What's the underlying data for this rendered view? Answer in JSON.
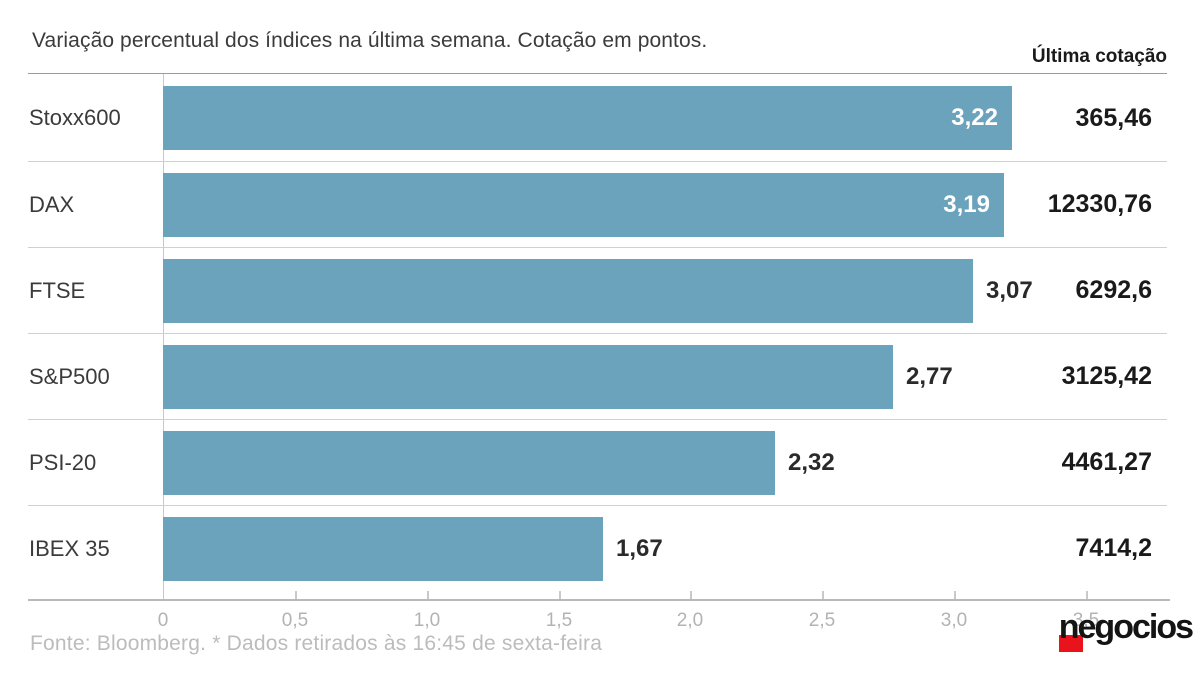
{
  "title": "Variação percentual dos índices na última semana. Cotação em pontos.",
  "column_header": "Última cotação",
  "footer": "Fonte: Bloomberg.  * Dados retirados às 16:45 de sexta-feira",
  "logo": {
    "text": "negocios",
    "red_hex": "#e8131b"
  },
  "colors": {
    "bar": "#6ba2bc",
    "title_text": "#3b3b3b",
    "value_text": "#1a1a1a",
    "value_inside_text": "#ffffff",
    "axis_text": "#b3b3b3",
    "separator": "#d0d0d0",
    "header_rule": "#9b9b9b"
  },
  "chart_data": {
    "type": "bar",
    "orientation": "horizontal",
    "title": "Variação percentual dos índices na última semana. Cotação em pontos.",
    "categories": [
      "Stoxx600",
      "DAX",
      "FTSE",
      "S&P500",
      "PSI-20",
      "IBEX 35"
    ],
    "values": [
      3.22,
      3.19,
      3.07,
      2.77,
      2.32,
      1.67
    ],
    "value_labels": [
      "3,22",
      "3,19",
      "3,07",
      "2,77",
      "2,32",
      "1,67"
    ],
    "value_label_inside": [
      true,
      true,
      false,
      false,
      false,
      false
    ],
    "last_quote_header": "Última cotação",
    "last_quotes": [
      "365,46",
      "12330,76",
      "6292,6",
      "3125,42",
      "4461,27",
      "7414,2"
    ],
    "xlim": [
      0,
      3.5
    ],
    "x_ticks": [
      0,
      0.5,
      1.0,
      1.5,
      2.0,
      2.5,
      3.0,
      3.5
    ],
    "x_tick_labels": [
      "0",
      "0,5",
      "1,0",
      "1,5",
      "2,0",
      "2,5",
      "3,0",
      "3,5"
    ],
    "grid": false,
    "legend": false,
    "source": "Fonte: Bloomberg.",
    "note": "* Dados retirados às 16:45 de sexta-feira"
  }
}
